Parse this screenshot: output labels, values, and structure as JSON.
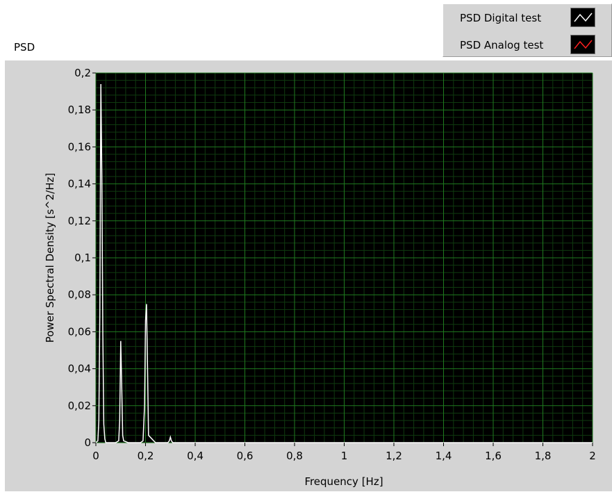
{
  "chart_label": "PSD",
  "legend": {
    "items": [
      {
        "label": "PSD Digital test",
        "color": "#ffffff"
      },
      {
        "label": "PSD Analog test",
        "color": "#ff2020"
      }
    ]
  },
  "colors": {
    "plot_background": "#000000",
    "grid_major": "#1f7a1f",
    "grid_minor": "#0f3a0f",
    "frame": "#d4d4d4"
  },
  "chart_data": {
    "type": "line",
    "xlabel": "Frequency [Hz]",
    "ylabel": "Power Spectral Density  [s^2/Hz]",
    "xlim": [
      0,
      2
    ],
    "ylim": [
      0,
      0.2
    ],
    "x_ticks": [
      0,
      0.2,
      0.4,
      0.6,
      0.8,
      1,
      1.2,
      1.4,
      1.6,
      1.8,
      2
    ],
    "x_tick_labels": [
      "0",
      "0,2",
      "0,4",
      "0,6",
      "0,8",
      "1",
      "1,2",
      "1,4",
      "1,6",
      "1,8",
      "2"
    ],
    "y_ticks": [
      0,
      0.02,
      0.04,
      0.06,
      0.08,
      0.1,
      0.12,
      0.14,
      0.16,
      0.18,
      0.2
    ],
    "y_tick_labels": [
      "0",
      "0,02",
      "0,04",
      "0,06",
      "0,08",
      "0,1",
      "0,12",
      "0,14",
      "0,16",
      "0,18",
      "0,2"
    ],
    "grid": true,
    "legend_position": "top-right",
    "series": [
      {
        "name": "PSD Digital test",
        "color": "#ffffff",
        "x": [
          0,
          0.008,
          0.012,
          0.016,
          0.02,
          0.024,
          0.028,
          0.032,
          0.036,
          0.04,
          0.05,
          0.08,
          0.092,
          0.096,
          0.1,
          0.104,
          0.108,
          0.112,
          0.13,
          0.18,
          0.19,
          0.196,
          0.2,
          0.204,
          0.208,
          0.212,
          0.24,
          0.29,
          0.296,
          0.3,
          0.304,
          0.31,
          0.4,
          1.0,
          2.0
        ],
        "y": [
          0,
          0.001,
          0.012,
          0.07,
          0.194,
          0.145,
          0.06,
          0.01,
          0.002,
          0,
          0,
          0,
          0.001,
          0.012,
          0.055,
          0.031,
          0.004,
          0.001,
          0,
          0,
          0.001,
          0.02,
          0.066,
          0.075,
          0.04,
          0.004,
          0,
          0,
          0.001,
          0.003,
          0.001,
          0,
          0,
          0,
          0
        ]
      },
      {
        "name": "PSD Analog test",
        "color": "#ff2020",
        "x": [],
        "y": []
      }
    ]
  }
}
